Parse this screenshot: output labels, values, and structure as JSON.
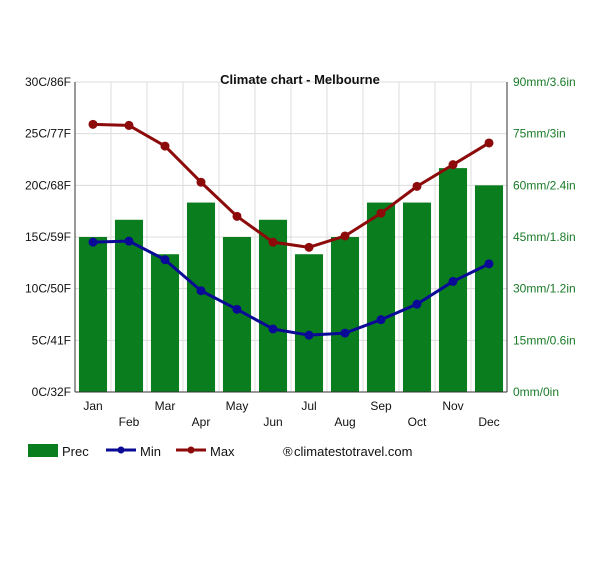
{
  "chart_data": {
    "type": "bar",
    "title": "Climate chart - Melbourne",
    "categories": [
      "Jan",
      "Feb",
      "Mar",
      "Apr",
      "May",
      "Jun",
      "Jul",
      "Aug",
      "Sep",
      "Oct",
      "Nov",
      "Dec"
    ],
    "series": [
      {
        "name": "Prec",
        "type": "bar",
        "axis": "right",
        "unit": "mm",
        "values": [
          45,
          50,
          40,
          55,
          45,
          50,
          40,
          45,
          55,
          55,
          65,
          60
        ]
      },
      {
        "name": "Min",
        "type": "line",
        "axis": "left",
        "unit": "C",
        "values": [
          14.5,
          14.6,
          12.8,
          9.8,
          8.0,
          6.1,
          5.5,
          5.7,
          7.0,
          8.5,
          10.7,
          12.4
        ]
      },
      {
        "name": "Max",
        "type": "line",
        "axis": "left",
        "unit": "C",
        "values": [
          25.9,
          25.8,
          23.8,
          20.3,
          17.0,
          14.5,
          14.0,
          15.1,
          17.3,
          19.9,
          22.0,
          24.1
        ]
      }
    ],
    "left_axis": {
      "ylim": [
        0,
        30
      ],
      "ticks": [
        "0C/32F",
        "5C/41F",
        "10C/50F",
        "15C/59F",
        "20C/68F",
        "25C/77F",
        "30C/86F"
      ]
    },
    "right_axis": {
      "ylim": [
        0,
        90
      ],
      "ticks": [
        "0mm/0in",
        "15mm/0.6in",
        "30mm/1.2in",
        "45mm/1.8in",
        "60mm/2.4in",
        "75mm/3in",
        "90mm/3.6in"
      ]
    },
    "grid": true,
    "legend_position": "bottom",
    "legend": [
      {
        "label": "Prec",
        "kind": "bar",
        "color": "#0a7d1e"
      },
      {
        "label": "Min",
        "kind": "line",
        "color": "#0a0a96"
      },
      {
        "label": "Max",
        "kind": "line",
        "color": "#8c0a0a"
      }
    ],
    "credit": "climatestotravel.com",
    "credit_symbol": "®",
    "colors": {
      "prec": "#0a7d1e",
      "min": "#0a0a96",
      "max": "#8c0a0a",
      "left_axis_text": "#111111",
      "right_axis_text": "#1a7a28",
      "grid": "#dcdcdc"
    }
  }
}
